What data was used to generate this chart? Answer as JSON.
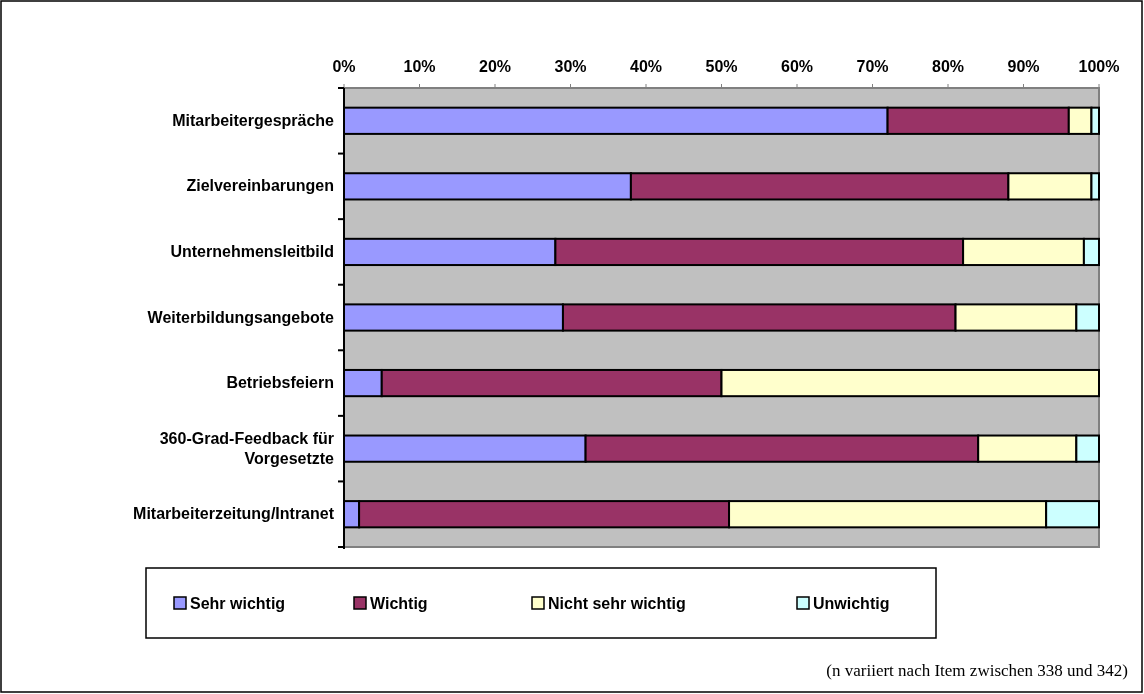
{
  "chart_data": {
    "type": "bar",
    "orientation": "horizontal",
    "stacked": true,
    "categories": [
      "Mitarbeitergespräche",
      "Zielvereinbarungen",
      "Unternehmensleitbild",
      "Weiterbildungsangebote",
      "Betriebsfeiern",
      "360-Grad-Feedback für Vorgesetzte",
      "Mitarbeiterzeitung/Intranet"
    ],
    "series": [
      {
        "name": "Sehr wichtig",
        "color": "#9999ff",
        "values": [
          72,
          38,
          28,
          29,
          5,
          32,
          2
        ]
      },
      {
        "name": "Wichtig",
        "color": "#993366",
        "values": [
          24,
          50,
          54,
          52,
          45,
          52,
          49
        ]
      },
      {
        "name": "Nicht sehr wichtig",
        "color": "#ffffcc",
        "values": [
          3,
          11,
          16,
          16,
          50,
          13,
          42
        ]
      },
      {
        "name": "Unwichtig",
        "color": "#ccffff",
        "values": [
          1,
          1,
          2,
          3,
          0,
          3,
          7
        ]
      }
    ],
    "xlim": [
      0,
      100
    ],
    "xticks": [
      {
        "value": 0,
        "label": "0%"
      },
      {
        "value": 10,
        "label": "10%"
      },
      {
        "value": 20,
        "label": "20%"
      },
      {
        "value": 30,
        "label": "30%"
      },
      {
        "value": 40,
        "label": "40%"
      },
      {
        "value": 50,
        "label": "50%"
      },
      {
        "value": 60,
        "label": "60%"
      },
      {
        "value": 70,
        "label": "70%"
      },
      {
        "value": 80,
        "label": "80%"
      },
      {
        "value": 90,
        "label": "90%"
      },
      {
        "value": 100,
        "label": "100%"
      }
    ],
    "grid": false,
    "legend": "bottom",
    "annotations": [
      "(n variiert nach Item zwischen 338 und 342)"
    ]
  }
}
